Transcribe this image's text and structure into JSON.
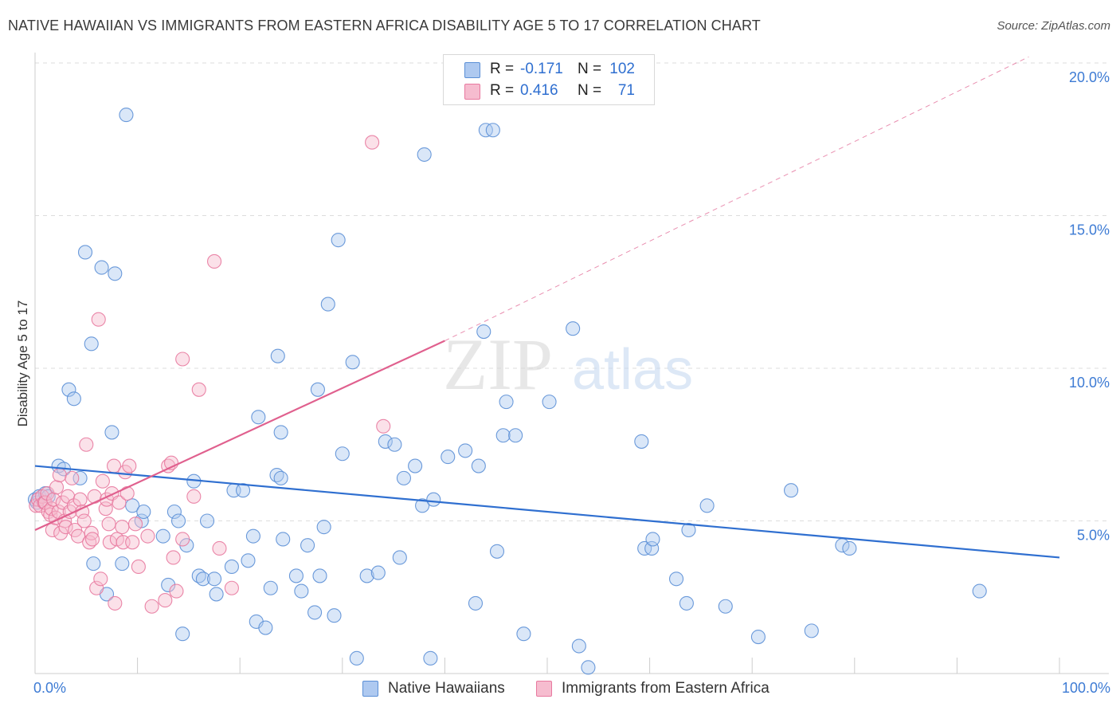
{
  "header": {
    "title": "NATIVE HAWAIIAN VS IMMIGRANTS FROM EASTERN AFRICA DISABILITY AGE 5 TO 17 CORRELATION CHART",
    "source": "Source: ZipAtlas.com"
  },
  "legend": {
    "r_label": "R =",
    "n_label": "N =",
    "series": [
      {
        "r": "-0.171",
        "n": "102"
      },
      {
        "r": "0.416",
        "n": "71"
      }
    ]
  },
  "bottom_legend": [
    "Native Hawaiians",
    "Immigrants from Eastern Africa"
  ],
  "watermark": {
    "zip": "ZIP",
    "atlas": "atlas"
  },
  "colors": {
    "blue_fill": "#aec9f0",
    "blue_stroke": "#5b8fd6",
    "blue_line": "#2f6fd0",
    "pink_fill": "#f6bccf",
    "pink_stroke": "#e8799f",
    "pink_line": "#e0608e",
    "axis_text": "#3d7bd4",
    "grid": "#dddddd"
  },
  "chart_data": {
    "type": "scatter",
    "title": "NATIVE HAWAIIAN VS IMMIGRANTS FROM EASTERN AFRICA DISABILITY AGE 5 TO 17 CORRELATION CHART",
    "xlabel": "",
    "ylabel": "Disability Age 5 to 17",
    "xlim": [
      0,
      100
    ],
    "ylim": [
      0,
      20
    ],
    "x_tick_labels": [
      "0.0%",
      "100.0%"
    ],
    "y_ticks": [
      5,
      10,
      15,
      20
    ],
    "y_tick_labels": [
      "5.0%",
      "10.0%",
      "15.0%",
      "20.0%"
    ],
    "grid": true,
    "series": [
      {
        "name": "Native Hawaiians",
        "color": "blue",
        "r": -0.171,
        "n": 102,
        "trend": {
          "x": [
            0,
            100
          ],
          "y": [
            6.8,
            3.8
          ]
        },
        "points": [
          [
            0.0,
            5.7
          ],
          [
            0.2,
            5.6
          ],
          [
            0.4,
            5.8
          ],
          [
            1.0,
            5.9
          ],
          [
            1.3,
            5.8
          ],
          [
            2.3,
            6.8
          ],
          [
            2.8,
            6.7
          ],
          [
            3.3,
            9.3
          ],
          [
            3.8,
            9.0
          ],
          [
            4.4,
            6.4
          ],
          [
            4.9,
            13.8
          ],
          [
            5.5,
            10.8
          ],
          [
            5.7,
            3.6
          ],
          [
            6.5,
            13.3
          ],
          [
            7.0,
            2.6
          ],
          [
            7.5,
            7.9
          ],
          [
            7.8,
            13.1
          ],
          [
            8.5,
            3.6
          ],
          [
            8.9,
            18.3
          ],
          [
            9.5,
            5.5
          ],
          [
            10.4,
            5.0
          ],
          [
            10.6,
            5.3
          ],
          [
            12.5,
            4.5
          ],
          [
            13.0,
            2.9
          ],
          [
            13.6,
            5.3
          ],
          [
            14.0,
            5.0
          ],
          [
            14.4,
            1.3
          ],
          [
            14.8,
            4.2
          ],
          [
            15.5,
            6.3
          ],
          [
            16.0,
            3.2
          ],
          [
            16.4,
            3.1
          ],
          [
            16.8,
            5.0
          ],
          [
            17.5,
            3.1
          ],
          [
            17.7,
            2.6
          ],
          [
            19.2,
            3.5
          ],
          [
            19.4,
            6.0
          ],
          [
            20.3,
            6.0
          ],
          [
            20.8,
            3.7
          ],
          [
            21.3,
            4.5
          ],
          [
            21.6,
            1.7
          ],
          [
            21.8,
            8.4
          ],
          [
            22.5,
            1.5
          ],
          [
            23.0,
            2.8
          ],
          [
            23.6,
            6.5
          ],
          [
            24.0,
            6.4
          ],
          [
            23.7,
            10.4
          ],
          [
            24.0,
            7.9
          ],
          [
            24.2,
            4.4
          ],
          [
            25.5,
            3.2
          ],
          [
            26.0,
            2.7
          ],
          [
            26.6,
            4.2
          ],
          [
            27.3,
            2.0
          ],
          [
            27.6,
            9.3
          ],
          [
            27.8,
            3.2
          ],
          [
            28.2,
            4.8
          ],
          [
            28.6,
            12.1
          ],
          [
            29.2,
            1.9
          ],
          [
            29.6,
            14.2
          ],
          [
            30.0,
            7.2
          ],
          [
            31.0,
            10.2
          ],
          [
            31.4,
            0.5
          ],
          [
            32.4,
            3.2
          ],
          [
            33.5,
            3.3
          ],
          [
            34.2,
            7.6
          ],
          [
            35.1,
            7.5
          ],
          [
            35.6,
            3.8
          ],
          [
            36.0,
            6.4
          ],
          [
            37.1,
            6.8
          ],
          [
            37.8,
            5.5
          ],
          [
            38.6,
            0.5
          ],
          [
            38.0,
            17.0
          ],
          [
            38.9,
            5.7
          ],
          [
            40.3,
            7.1
          ],
          [
            42.0,
            7.3
          ],
          [
            43.0,
            2.3
          ],
          [
            43.3,
            6.8
          ],
          [
            43.8,
            11.2
          ],
          [
            44.0,
            17.8
          ],
          [
            44.7,
            17.8
          ],
          [
            45.1,
            4.0
          ],
          [
            45.7,
            7.8
          ],
          [
            46.0,
            8.9
          ],
          [
            46.9,
            7.8
          ],
          [
            47.7,
            1.3
          ],
          [
            50.2,
            8.9
          ],
          [
            52.5,
            11.3
          ],
          [
            53.1,
            0.9
          ],
          [
            54.0,
            0.2
          ],
          [
            59.2,
            7.6
          ],
          [
            59.5,
            4.1
          ],
          [
            60.2,
            4.1
          ],
          [
            60.3,
            4.4
          ],
          [
            62.6,
            3.1
          ],
          [
            63.6,
            2.3
          ],
          [
            63.8,
            4.7
          ],
          [
            65.6,
            5.5
          ],
          [
            67.4,
            2.2
          ],
          [
            70.6,
            1.2
          ],
          [
            73.8,
            6.0
          ],
          [
            75.8,
            1.4
          ],
          [
            78.8,
            4.2
          ],
          [
            79.5,
            4.1
          ],
          [
            92.2,
            2.7
          ]
        ]
      },
      {
        "name": "Immigrants from Eastern Africa",
        "color": "pink",
        "r": 0.416,
        "n": 71,
        "trend": {
          "x": [
            0,
            40
          ],
          "y": [
            4.7,
            10.9
          ],
          "dashed_to": {
            "x": 97,
            "y": 20.2
          }
        },
        "points": [
          [
            0.1,
            5.5
          ],
          [
            0.3,
            5.7
          ],
          [
            0.5,
            5.5
          ],
          [
            0.7,
            5.8
          ],
          [
            0.9,
            5.6
          ],
          [
            1.0,
            5.6
          ],
          [
            1.2,
            5.9
          ],
          [
            1.3,
            5.3
          ],
          [
            1.5,
            5.2
          ],
          [
            1.6,
            5.4
          ],
          [
            1.7,
            4.7
          ],
          [
            1.8,
            5.7
          ],
          [
            2.0,
            5.1
          ],
          [
            2.1,
            6.1
          ],
          [
            2.3,
            5.3
          ],
          [
            2.4,
            6.5
          ],
          [
            2.5,
            4.6
          ],
          [
            2.7,
            5.6
          ],
          [
            2.9,
            5.0
          ],
          [
            3.0,
            4.8
          ],
          [
            3.2,
            5.8
          ],
          [
            3.4,
            5.3
          ],
          [
            3.6,
            6.4
          ],
          [
            3.8,
            5.5
          ],
          [
            3.9,
            4.7
          ],
          [
            4.2,
            4.5
          ],
          [
            4.4,
            5.7
          ],
          [
            4.6,
            5.3
          ],
          [
            4.8,
            5.0
          ],
          [
            5.0,
            7.5
          ],
          [
            5.3,
            4.3
          ],
          [
            5.5,
            4.6
          ],
          [
            5.6,
            4.4
          ],
          [
            5.8,
            5.8
          ],
          [
            6.0,
            2.8
          ],
          [
            6.2,
            11.6
          ],
          [
            6.4,
            3.1
          ],
          [
            6.6,
            6.3
          ],
          [
            6.9,
            5.4
          ],
          [
            7.2,
            4.9
          ],
          [
            7.0,
            5.7
          ],
          [
            7.3,
            4.3
          ],
          [
            7.5,
            5.9
          ],
          [
            7.7,
            6.8
          ],
          [
            7.8,
            2.3
          ],
          [
            8.0,
            4.4
          ],
          [
            8.2,
            5.6
          ],
          [
            8.5,
            4.8
          ],
          [
            8.6,
            4.3
          ],
          [
            8.8,
            6.6
          ],
          [
            9.0,
            5.9
          ],
          [
            9.2,
            6.8
          ],
          [
            9.5,
            4.3
          ],
          [
            9.8,
            4.9
          ],
          [
            10.1,
            3.5
          ],
          [
            11.0,
            4.5
          ],
          [
            11.4,
            2.2
          ],
          [
            12.7,
            2.4
          ],
          [
            13.0,
            6.8
          ],
          [
            13.3,
            6.9
          ],
          [
            13.8,
            2.7
          ],
          [
            14.4,
            4.4
          ],
          [
            13.5,
            3.8
          ],
          [
            14.4,
            10.3
          ],
          [
            15.5,
            5.8
          ],
          [
            16.0,
            9.3
          ],
          [
            17.5,
            13.5
          ],
          [
            18.0,
            4.1
          ],
          [
            19.2,
            2.8
          ],
          [
            32.9,
            17.4
          ],
          [
            34.0,
            8.1
          ]
        ]
      }
    ]
  }
}
